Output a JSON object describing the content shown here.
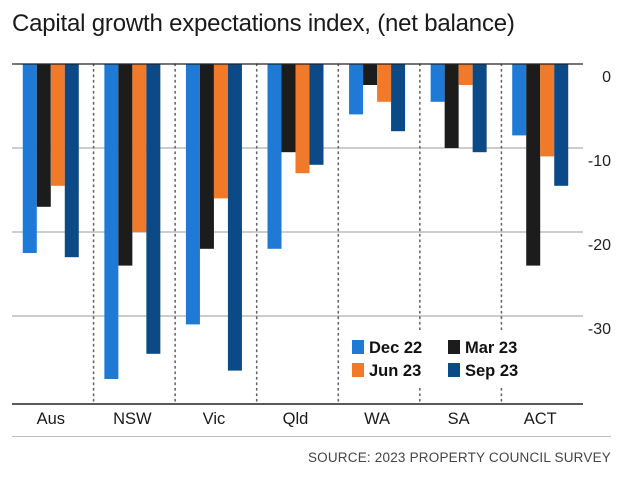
{
  "title": "Capital growth expectations index, (net balance)",
  "source": "SOURCE: 2023 PROPERTY COUNCIL SURVEY",
  "chart_data": {
    "type": "bar",
    "title": "Capital growth expectations index, (net balance)",
    "categories": [
      "Aus",
      "NSW",
      "Vic",
      "Qld",
      "WA",
      "SA",
      "ACT"
    ],
    "series": [
      {
        "name": "Dec 22",
        "color": "#1f7ad6",
        "values": [
          -22.5,
          -37.5,
          -31,
          -22,
          -6,
          -4.5,
          -8.5
        ]
      },
      {
        "name": "Mar 23",
        "color": "#1c1c1c",
        "values": [
          -17,
          -24,
          -22,
          -10.5,
          -2.5,
          -10,
          -24
        ]
      },
      {
        "name": "Jun 23",
        "color": "#f07a2a",
        "values": [
          -14.5,
          -20,
          -16,
          -13,
          -4.5,
          -2.5,
          -11
        ]
      },
      {
        "name": "Sep 23",
        "color": "#0b4a86",
        "values": [
          -23,
          -34.5,
          -36.5,
          -12,
          -8,
          -10.5,
          -14.5
        ]
      }
    ],
    "yticks": [
      0,
      -10,
      -20,
      -30
    ],
    "ytick_labels": [
      "0",
      "-10",
      "-20",
      "-30"
    ],
    "ylim": [
      -40,
      0
    ],
    "grid": true,
    "legend_position": "bottom-right",
    "legend": [
      "Dec 22",
      "Mar 23",
      "Jun 23",
      "Sep 23"
    ]
  }
}
